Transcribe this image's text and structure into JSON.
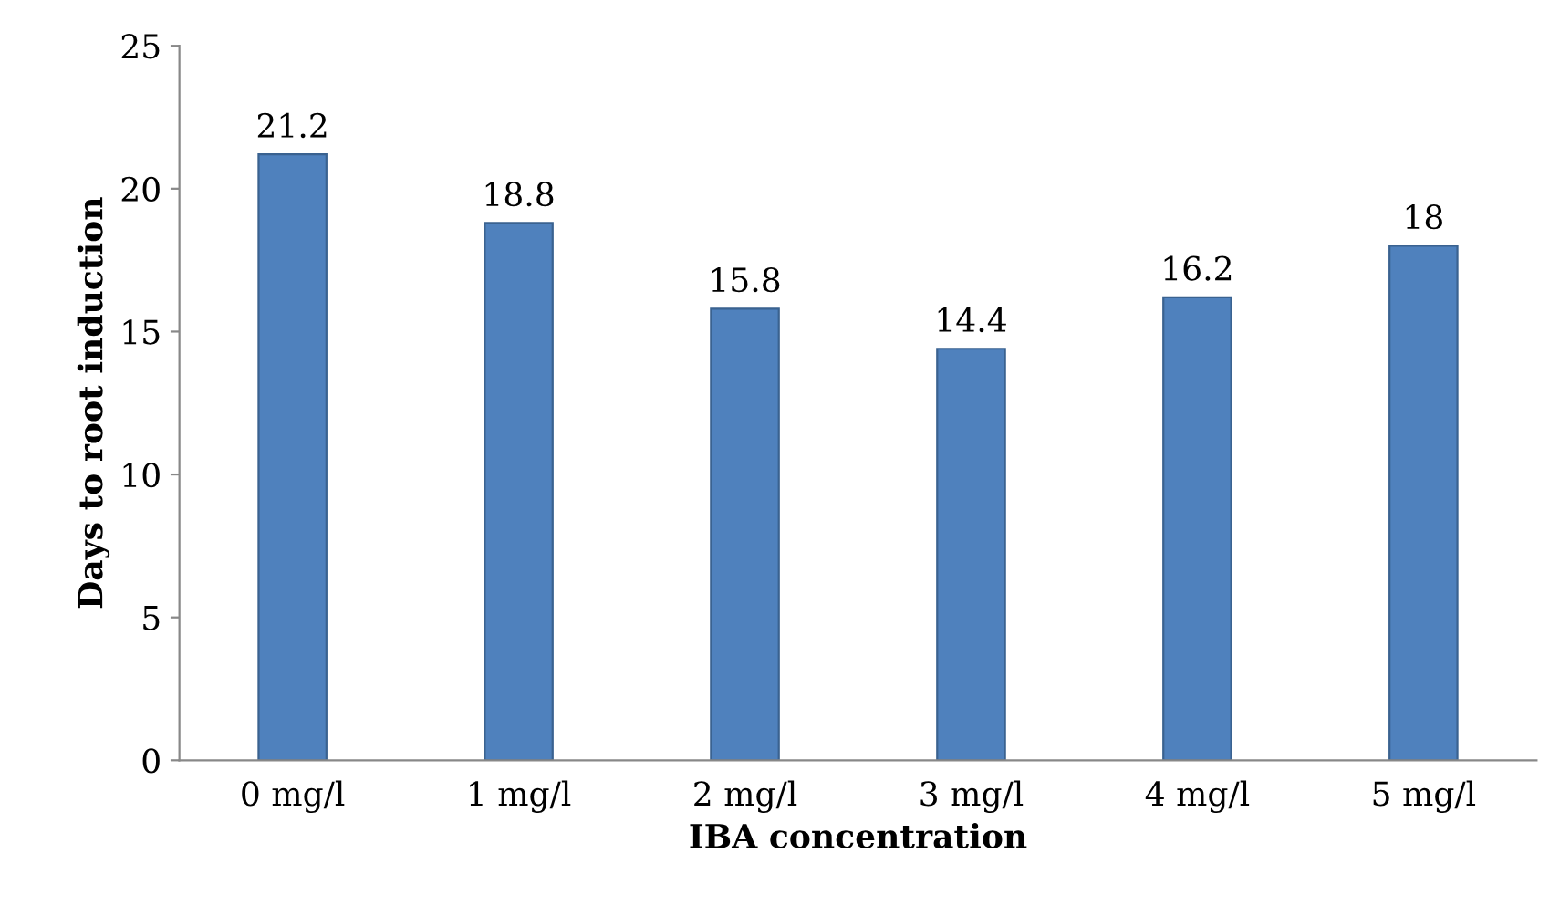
{
  "chart_data": {
    "type": "bar",
    "xlabel": "IBA concentration",
    "ylabel": "Days to root induction",
    "categories": [
      "0 mg/l",
      "1 mg/l",
      "2 mg/l",
      "3 mg/l",
      "4 mg/l",
      "5 mg/l"
    ],
    "values": [
      21.2,
      18.8,
      15.8,
      14.4,
      16.2,
      18
    ],
    "color": "#4f81bd",
    "ylim": [
      0,
      25
    ],
    "yticks": [
      0,
      5,
      10,
      15,
      20,
      25
    ],
    "grid": false,
    "data_labels": true
  }
}
